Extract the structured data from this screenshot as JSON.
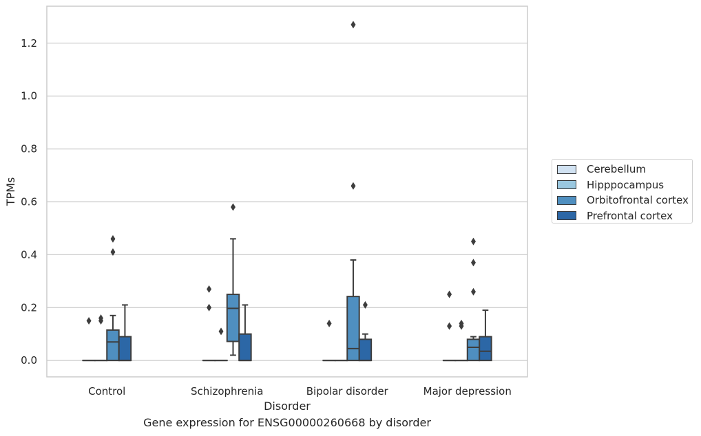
{
  "chart_data": {
    "type": "box",
    "title": "",
    "caption": "Gene expression for ENSG00000260668 by disorder",
    "xlabel": "Disorder",
    "ylabel": "TPMs",
    "ylim": [
      -0.062,
      1.34
    ],
    "yticks": [
      "0.0",
      "0.2",
      "0.4",
      "0.6",
      "0.8",
      "1.0",
      "1.2"
    ],
    "grid": "horizontal",
    "legend_position": "right",
    "categories": [
      "Control",
      "Schizophrenia",
      "Bipolar disorder",
      "Major depression"
    ],
    "series": [
      {
        "name": "Cerebellum",
        "color": "#d1e2f2",
        "boxes": [
          {
            "q1": 0.0,
            "median": 0.0,
            "q3": 0.0,
            "whisker_low": 0.0,
            "whisker_high": 0.0,
            "outliers": [
              0.15
            ]
          },
          {
            "q1": 0.0,
            "median": 0.0,
            "q3": 0.0,
            "whisker_low": 0.0,
            "whisker_high": 0.0,
            "outliers": [
              0.27,
              0.2
            ]
          },
          {
            "q1": 0.0,
            "median": 0.0,
            "q3": 0.0,
            "whisker_low": 0.0,
            "whisker_high": 0.0,
            "outliers": [
              0.14
            ]
          },
          {
            "q1": 0.0,
            "median": 0.0,
            "q3": 0.0,
            "whisker_low": 0.0,
            "whisker_high": 0.0,
            "outliers": [
              0.25,
              0.13
            ]
          }
        ]
      },
      {
        "name": "Hipppocampus",
        "color": "#9ac8e0",
        "boxes": [
          {
            "q1": 0.0,
            "median": 0.0,
            "q3": 0.0,
            "whisker_low": 0.0,
            "whisker_high": 0.0,
            "outliers": [
              0.16,
              0.15
            ]
          },
          {
            "q1": 0.0,
            "median": 0.0,
            "q3": 0.0,
            "whisker_low": 0.0,
            "whisker_high": 0.0,
            "outliers": [
              0.11
            ]
          },
          {
            "q1": 0.0,
            "median": 0.0,
            "q3": 0.0,
            "whisker_low": 0.0,
            "whisker_high": 0.0,
            "outliers": []
          },
          {
            "q1": 0.0,
            "median": 0.0,
            "q3": 0.0,
            "whisker_low": 0.0,
            "whisker_high": 0.0,
            "outliers": [
              0.14,
              0.13
            ]
          }
        ]
      },
      {
        "name": "Orbitofrontal cortex",
        "color": "#4f8fc0",
        "boxes": [
          {
            "q1": 0.0,
            "median": 0.07,
            "q3": 0.115,
            "whisker_low": 0.0,
            "whisker_high": 0.17,
            "outliers": [
              0.46,
              0.41
            ]
          },
          {
            "q1": 0.072,
            "median": 0.197,
            "q3": 0.25,
            "whisker_low": 0.02,
            "whisker_high": 0.46,
            "outliers": [
              0.58
            ]
          },
          {
            "q1": 0.0,
            "median": 0.045,
            "q3": 0.242,
            "whisker_low": 0.0,
            "whisker_high": 0.38,
            "outliers": [
              1.27,
              0.66
            ]
          },
          {
            "q1": 0.0,
            "median": 0.05,
            "q3": 0.08,
            "whisker_low": 0.0,
            "whisker_high": 0.09,
            "outliers": [
              0.45,
              0.37,
              0.26
            ]
          }
        ]
      },
      {
        "name": "Prefrontal cortex",
        "color": "#2c67a6",
        "boxes": [
          {
            "q1": 0.0,
            "median": 0.0,
            "q3": 0.09,
            "whisker_low": 0.0,
            "whisker_high": 0.21,
            "outliers": []
          },
          {
            "q1": 0.0,
            "median": 0.0,
            "q3": 0.1,
            "whisker_low": 0.0,
            "whisker_high": 0.21,
            "outliers": []
          },
          {
            "q1": 0.0,
            "median": 0.0,
            "q3": 0.08,
            "whisker_low": 0.0,
            "whisker_high": 0.1,
            "outliers": [
              0.21
            ]
          },
          {
            "q1": 0.0,
            "median": 0.035,
            "q3": 0.09,
            "whisker_low": 0.0,
            "whisker_high": 0.19,
            "outliers": []
          }
        ]
      }
    ]
  }
}
